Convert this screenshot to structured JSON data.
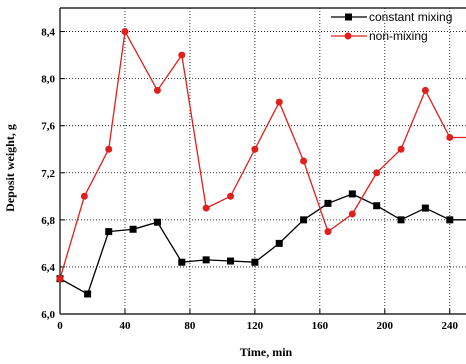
{
  "chart_data": {
    "type": "line",
    "xlabel": "Time, min",
    "ylabel": "Deposit weight, g",
    "xlim": [
      0,
      250
    ],
    "ylim": [
      6.0,
      8.6
    ],
    "x_ticks": [
      "0",
      "40",
      "80",
      "120",
      "160",
      "200",
      "240"
    ],
    "y_ticks": [
      "6,0",
      "6,4",
      "6,8",
      "7,2",
      "7,6",
      "8,0",
      "8,4"
    ],
    "grid": true,
    "legend_position": "top-right",
    "series": [
      {
        "name": "constant mixing",
        "color": "#000000",
        "marker": "square",
        "x": [
          0,
          17,
          30,
          45,
          60,
          75,
          90,
          105,
          120,
          135,
          150,
          165,
          180,
          195,
          210,
          225,
          240,
          255
        ],
        "y": [
          6.3,
          6.17,
          6.7,
          6.72,
          6.78,
          6.44,
          6.46,
          6.45,
          6.44,
          6.6,
          6.8,
          6.94,
          7.02,
          6.92,
          6.8,
          6.9,
          6.8,
          6.8
        ]
      },
      {
        "name": "non-mixing",
        "color": "#e0201c",
        "marker": "circle",
        "x": [
          0,
          15,
          30,
          40,
          60,
          75,
          90,
          105,
          120,
          135,
          150,
          165,
          180,
          195,
          210,
          225,
          240,
          255
        ],
        "y": [
          6.3,
          7.0,
          7.4,
          8.4,
          7.9,
          8.2,
          6.9,
          7.0,
          7.4,
          7.8,
          7.3,
          6.7,
          6.85,
          7.2,
          7.4,
          7.9,
          7.5,
          7.5
        ]
      }
    ]
  }
}
